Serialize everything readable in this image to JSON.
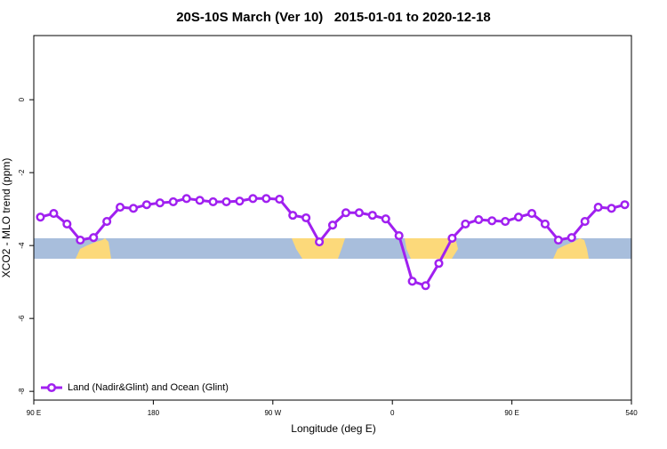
{
  "chart_data": {
    "type": "line",
    "title": "20S-10S March (Ver 10)   2015-01-01 to 2020-12-18",
    "x_label": "Longitude (deg E)",
    "y_label": "XCO2 - MLO trend (ppm)",
    "x": [
      95,
      105,
      115,
      125,
      135,
      145,
      155,
      165,
      175,
      185,
      195,
      205,
      215,
      225,
      235,
      245,
      255,
      265,
      275,
      285,
      295,
      305,
      315,
      325,
      335,
      345,
      355,
      365,
      375,
      385,
      395,
      405,
      415,
      425,
      435,
      445,
      455,
      465,
      475,
      485,
      495,
      505,
      515,
      525,
      535
    ],
    "series": [
      {
        "name": "Land (Nadir&Glint) and Ocean (Glint)",
        "color": "#a020f0",
        "values": [
          -3.22,
          -3.12,
          -3.41,
          -3.85,
          -3.78,
          -3.34,
          -2.95,
          -2.98,
          -2.88,
          -2.83,
          -2.8,
          -2.71,
          -2.76,
          -2.8,
          -2.8,
          -2.78,
          -2.71,
          -2.71,
          -2.73,
          -3.17,
          -3.24,
          -3.9,
          -3.44,
          -3.1,
          -3.1,
          -3.17,
          -3.27,
          -3.73,
          -4.98,
          -5.1,
          -4.49,
          -3.8,
          -3.41,
          -3.29,
          -3.32,
          -3.34,
          -3.22,
          -3.12,
          -3.41,
          -3.85,
          -3.78,
          -3.34,
          -2.95,
          -2.98,
          -2.88
        ]
      }
    ],
    "xlim": [
      90,
      540
    ],
    "xticks": [
      {
        "value": 90,
        "label": "90 E"
      },
      180,
      {
        "value": 270,
        "label": "90 W"
      },
      {
        "value": 360,
        "label": "0"
      },
      {
        "value": 450,
        "label": "90 E"
      },
      540
    ],
    "ylim": [
      -8.24,
      1.76
    ],
    "yticks": [
      0,
      -2,
      -4,
      -6,
      -8
    ],
    "legend": "bottomleft"
  }
}
